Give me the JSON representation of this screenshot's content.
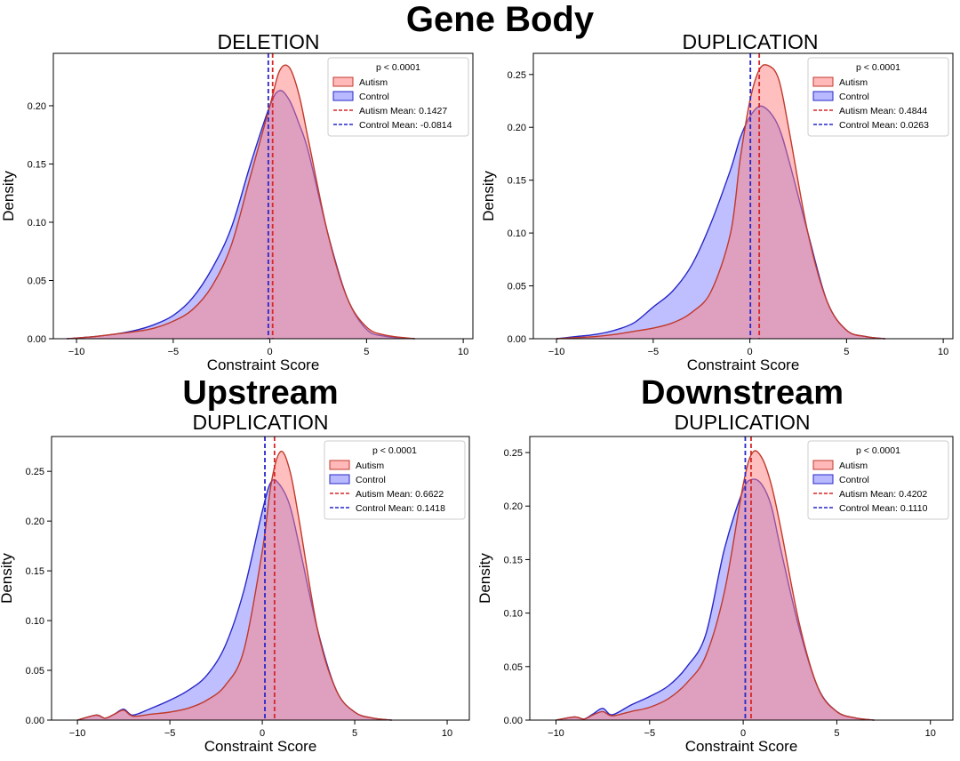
{
  "figure_title": "Gene Body",
  "panels": [
    {
      "section_title": "",
      "subtitle": "DELETION",
      "xlabel": "Constraint Score",
      "ylabel": "Density",
      "legend": {
        "title": "p < 0.0001",
        "autism_label": "Autism",
        "control_label": "Control",
        "autism_mean_label": "Autism Mean: 0.1427",
        "control_mean_label": "Control Mean: -0.0814"
      }
    },
    {
      "section_title": "",
      "subtitle": "DUPLICATION",
      "xlabel": "Constraint Score",
      "ylabel": "Density",
      "legend": {
        "title": "p < 0.0001",
        "autism_label": "Autism",
        "control_label": "Control",
        "autism_mean_label": "Autism Mean: 0.4844",
        "control_mean_label": "Control Mean: 0.0263"
      }
    },
    {
      "section_title": "Upstream",
      "subtitle": "DUPLICATION",
      "xlabel": "Constraint Score",
      "ylabel": "Density",
      "legend": {
        "title": "p < 0.0001",
        "autism_label": "Autism",
        "control_label": "Control",
        "autism_mean_label": "Autism Mean: 0.6622",
        "control_mean_label": "Control Mean: 0.1418"
      }
    },
    {
      "section_title": "Downstream",
      "subtitle": "DUPLICATION",
      "xlabel": "Constraint Score",
      "ylabel": "Density",
      "legend": {
        "title": "p < 0.0001",
        "autism_label": "Autism",
        "control_label": "Control",
        "autism_mean_label": "Autism Mean: 0.4202",
        "control_mean_label": "Control Mean: 0.1110"
      }
    }
  ],
  "chart_data": [
    {
      "type": "area",
      "title": "DELETION",
      "xlabel": "Constraint Score",
      "ylabel": "Density",
      "xlim": [
        -11.2,
        10.5
      ],
      "ylim": [
        0,
        0.245
      ],
      "xticks": [
        -10,
        -5,
        0,
        5,
        10
      ],
      "yticks": [
        0.0,
        0.05,
        0.1,
        0.15,
        0.2
      ],
      "ytick_labels": [
        "0.00",
        "0.05",
        "0.10",
        "0.15",
        "0.20"
      ],
      "legend_position": "upper-right",
      "p_value": "p < 0.0001",
      "series": [
        {
          "name": "Autism",
          "mean": 0.1427,
          "color": "#ff8080",
          "x": [
            -10.5,
            -9,
            -8,
            -7,
            -6,
            -5,
            -4,
            -3,
            -2,
            -1,
            0,
            0.5,
            1,
            1.5,
            2,
            3,
            4,
            5,
            6,
            7.5
          ],
          "y": [
            0,
            0.002,
            0.004,
            0.006,
            0.009,
            0.015,
            0.025,
            0.045,
            0.08,
            0.14,
            0.2,
            0.23,
            0.233,
            0.21,
            0.17,
            0.09,
            0.035,
            0.01,
            0.003,
            0
          ]
        },
        {
          "name": "Control",
          "mean": -0.0814,
          "color": "#8080ff",
          "x": [
            -10.5,
            -9,
            -8,
            -7,
            -6,
            -5,
            -4,
            -3,
            -2,
            -1,
            0,
            0.5,
            1,
            1.5,
            2,
            3,
            4,
            5,
            6,
            7.5
          ],
          "y": [
            0,
            0.002,
            0.004,
            0.007,
            0.012,
            0.02,
            0.035,
            0.06,
            0.095,
            0.15,
            0.2,
            0.213,
            0.205,
            0.185,
            0.16,
            0.09,
            0.035,
            0.008,
            0.002,
            0
          ]
        }
      ]
    },
    {
      "type": "area",
      "title": "DUPLICATION",
      "xlabel": "Constraint Score",
      "ylabel": "Density",
      "xlim": [
        -11.2,
        10.5
      ],
      "ylim": [
        0,
        0.27
      ],
      "xticks": [
        -10,
        -5,
        0,
        5,
        10
      ],
      "yticks": [
        0.0,
        0.05,
        0.1,
        0.15,
        0.2,
        0.25
      ],
      "ytick_labels": [
        "0.00",
        "0.05",
        "0.10",
        "0.15",
        "0.20",
        "0.25"
      ],
      "legend_position": "upper-right",
      "p_value": "p < 0.0001",
      "series": [
        {
          "name": "Autism",
          "mean": 0.4844,
          "color": "#ff8080",
          "x": [
            -10,
            -9,
            -8,
            -7,
            -6,
            -5,
            -4,
            -3,
            -2,
            -1,
            -0.5,
            0,
            0.5,
            1,
            1.5,
            2,
            3,
            4,
            5,
            6,
            7
          ],
          "y": [
            0,
            0.001,
            0.002,
            0.004,
            0.007,
            0.01,
            0.015,
            0.025,
            0.045,
            0.1,
            0.17,
            0.225,
            0.255,
            0.258,
            0.245,
            0.2,
            0.1,
            0.035,
            0.008,
            0.002,
            0
          ]
        },
        {
          "name": "Control",
          "mean": 0.0263,
          "color": "#8080ff",
          "x": [
            -10,
            -9,
            -8,
            -7,
            -6,
            -5,
            -4,
            -3,
            -2,
            -1,
            -0.5,
            0,
            0.5,
            1,
            1.5,
            2,
            3,
            4,
            5,
            6,
            7
          ],
          "y": [
            0,
            0.002,
            0.004,
            0.008,
            0.015,
            0.03,
            0.045,
            0.07,
            0.11,
            0.16,
            0.19,
            0.21,
            0.22,
            0.215,
            0.2,
            0.17,
            0.1,
            0.035,
            0.008,
            0.002,
            0
          ]
        }
      ]
    },
    {
      "type": "area",
      "title": "DUPLICATION",
      "section": "Upstream",
      "xlabel": "Constraint Score",
      "ylabel": "Density",
      "xlim": [
        -11.4,
        11.2
      ],
      "ylim": [
        0,
        0.285
      ],
      "xticks": [
        -10,
        -5,
        0,
        5,
        10
      ],
      "yticks": [
        0.0,
        0.05,
        0.1,
        0.15,
        0.2,
        0.25
      ],
      "ytick_labels": [
        "0.00",
        "0.05",
        "0.10",
        "0.15",
        "0.20",
        "0.25"
      ],
      "legend_position": "upper-right",
      "p_value": "p < 0.0001",
      "series": [
        {
          "name": "Autism",
          "mean": 0.6622,
          "color": "#ff8080",
          "x": [
            -10,
            -9,
            -8.5,
            -8,
            -7.5,
            -7,
            -6,
            -5,
            -4,
            -3,
            -2,
            -1,
            0,
            0.5,
            1,
            1.5,
            2,
            3,
            4,
            5,
            6,
            7
          ],
          "y": [
            0,
            0.005,
            0.002,
            0.006,
            0.01,
            0.004,
            0.006,
            0.008,
            0.012,
            0.02,
            0.035,
            0.07,
            0.17,
            0.24,
            0.27,
            0.25,
            0.2,
            0.09,
            0.03,
            0.008,
            0.002,
            0
          ]
        },
        {
          "name": "Control",
          "mean": 0.1418,
          "color": "#8080ff",
          "x": [
            -10,
            -9,
            -8.5,
            -8,
            -7.5,
            -7,
            -6,
            -5,
            -4,
            -3,
            -2,
            -1,
            0,
            0.5,
            1,
            1.5,
            2,
            3,
            4,
            5,
            6,
            7
          ],
          "y": [
            0,
            0.005,
            0.002,
            0.006,
            0.011,
            0.005,
            0.012,
            0.02,
            0.03,
            0.045,
            0.075,
            0.13,
            0.21,
            0.24,
            0.235,
            0.215,
            0.175,
            0.09,
            0.03,
            0.008,
            0.002,
            0
          ]
        }
      ]
    },
    {
      "type": "area",
      "title": "DUPLICATION",
      "section": "Downstream",
      "xlabel": "Constraint Score",
      "ylabel": "Density",
      "xlim": [
        -11.4,
        11.2
      ],
      "ylim": [
        0,
        0.265
      ],
      "xticks": [
        -10,
        -5,
        0,
        5,
        10
      ],
      "yticks": [
        0.0,
        0.05,
        0.1,
        0.15,
        0.2,
        0.25
      ],
      "ytick_labels": [
        "0.00",
        "0.05",
        "0.10",
        "0.15",
        "0.20",
        "0.25"
      ],
      "legend_position": "upper-right",
      "p_value": "p < 0.0001",
      "series": [
        {
          "name": "Autism",
          "mean": 0.4202,
          "color": "#ff8080",
          "x": [
            -10,
            -9,
            -8.5,
            -8,
            -7.5,
            -7,
            -6,
            -5,
            -4,
            -3,
            -2,
            -1,
            0,
            0.5,
            1,
            1.5,
            2,
            3,
            4,
            5,
            6,
            7
          ],
          "y": [
            0,
            0.003,
            0.001,
            0.005,
            0.008,
            0.004,
            0.008,
            0.012,
            0.02,
            0.035,
            0.06,
            0.12,
            0.22,
            0.25,
            0.245,
            0.22,
            0.18,
            0.09,
            0.03,
            0.008,
            0.002,
            0
          ]
        },
        {
          "name": "Control",
          "mean": 0.111,
          "color": "#8080ff",
          "x": [
            -10,
            -9,
            -8.5,
            -8,
            -7.5,
            -7,
            -6,
            -5,
            -4,
            -3,
            -2,
            -1,
            0,
            0.5,
            1,
            1.5,
            2,
            3,
            4,
            5,
            6,
            7
          ],
          "y": [
            0,
            0.003,
            0.001,
            0.006,
            0.011,
            0.005,
            0.014,
            0.022,
            0.032,
            0.05,
            0.08,
            0.16,
            0.215,
            0.225,
            0.22,
            0.2,
            0.16,
            0.085,
            0.03,
            0.008,
            0.002,
            0
          ]
        }
      ]
    }
  ]
}
